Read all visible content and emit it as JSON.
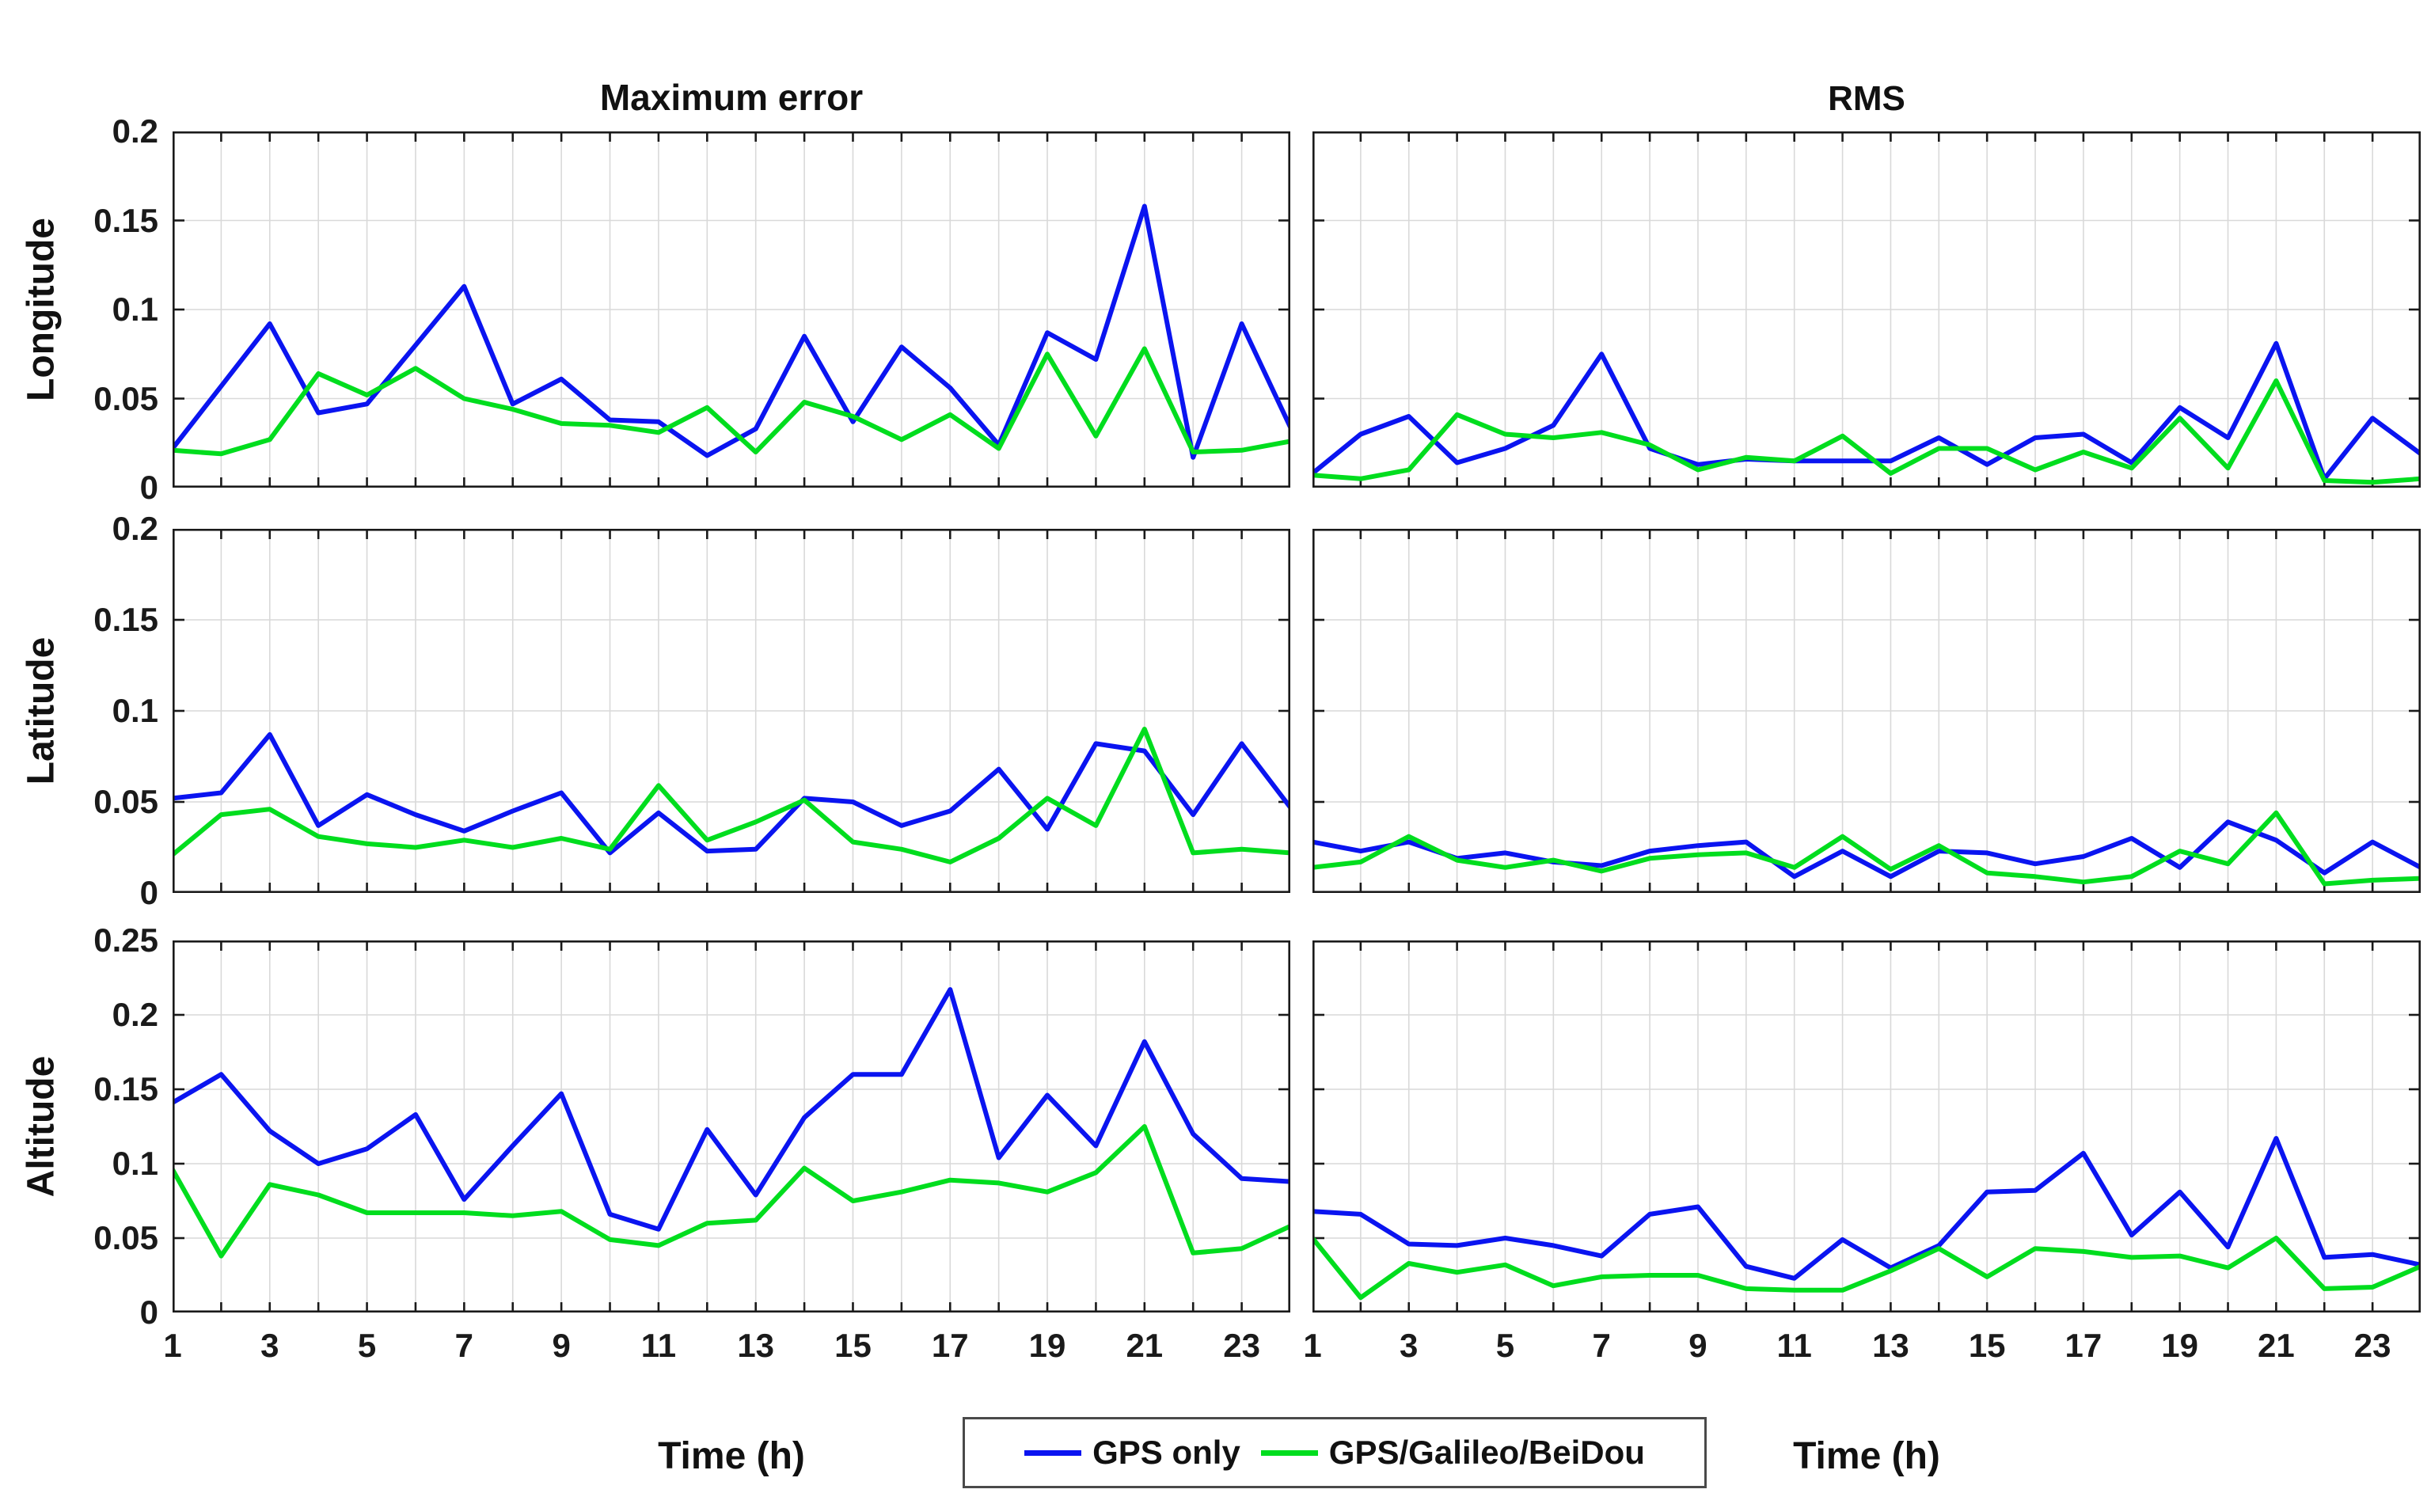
{
  "figure": {
    "background": "#ffffff",
    "left_column_title": "Maximum error",
    "right_column_title": "RMS",
    "row_labels": [
      "Longitude",
      "Latitude",
      "Altitude"
    ],
    "x_axis_label": "Time (h)",
    "x_tick_labels": [
      "1",
      "3",
      "5",
      "7",
      "9",
      "11",
      "13",
      "15",
      "17",
      "19",
      "21",
      "23"
    ]
  },
  "colors": {
    "gps_blue": "#0a14f0",
    "combo_green": "#00dd1e",
    "grid": "#d9d9d9",
    "axis": "#1a1a1a",
    "text": "#111111"
  },
  "legend": {
    "items": [
      {
        "label": "GPS only",
        "color": "#0a14f0"
      },
      {
        "label": "GPS/Galileo/BeiDou",
        "color": "#00dd1e"
      }
    ]
  },
  "chart_data": [
    {
      "key": "lon_max",
      "type": "line",
      "title": "Maximum error",
      "row": "Longitude",
      "x": [
        1,
        2,
        3,
        4,
        5,
        6,
        7,
        8,
        9,
        10,
        11,
        12,
        13,
        14,
        15,
        16,
        17,
        18,
        19,
        20,
        21,
        22,
        23,
        24
      ],
      "xlim": [
        1,
        24
      ],
      "ylim": [
        0,
        0.2
      ],
      "ytick_values": [
        0,
        0.05,
        0.1,
        0.15,
        0.2
      ],
      "ytick_labels": [
        "0",
        "0.05",
        "0.1",
        "0.15",
        "0.2"
      ],
      "grid": true,
      "series": [
        {
          "name": "GPS only",
          "color": "#0a14f0",
          "values": [
            0.022,
            0.057,
            0.092,
            0.042,
            0.047,
            0.08,
            0.113,
            0.047,
            0.061,
            0.038,
            0.037,
            0.018,
            0.033,
            0.085,
            0.037,
            0.079,
            0.056,
            0.024,
            0.087,
            0.072,
            0.158,
            0.017,
            0.092,
            0.034
          ]
        },
        {
          "name": "GPS/Galileo/BeiDou",
          "color": "#00dd1e",
          "values": [
            0.021,
            0.019,
            0.027,
            0.064,
            0.052,
            0.067,
            0.05,
            0.044,
            0.036,
            0.035,
            0.031,
            0.045,
            0.02,
            0.048,
            0.04,
            0.027,
            0.041,
            0.022,
            0.075,
            0.029,
            0.078,
            0.02,
            0.021,
            0.026
          ]
        }
      ]
    },
    {
      "key": "lon_rms",
      "type": "line",
      "title": "RMS",
      "row": "Longitude",
      "x": [
        1,
        2,
        3,
        4,
        5,
        6,
        7,
        8,
        9,
        10,
        11,
        12,
        13,
        14,
        15,
        16,
        17,
        18,
        19,
        20,
        21,
        22,
        23,
        24
      ],
      "xlim": [
        1,
        24
      ],
      "ylim": [
        0,
        0.2
      ],
      "ytick_values": [
        0,
        0.05,
        0.1,
        0.15,
        0.2
      ],
      "ytick_labels": [
        "0",
        "0.05",
        "0.1",
        "0.15",
        "0.2"
      ],
      "grid": true,
      "series": [
        {
          "name": "GPS only",
          "color": "#0a14f0",
          "values": [
            0.008,
            0.03,
            0.04,
            0.014,
            0.022,
            0.035,
            0.075,
            0.022,
            0.013,
            0.016,
            0.015,
            0.015,
            0.015,
            0.028,
            0.013,
            0.028,
            0.03,
            0.014,
            0.045,
            0.028,
            0.081,
            0.005,
            0.039,
            0.019
          ]
        },
        {
          "name": "GPS/Galileo/BeiDou",
          "color": "#00dd1e",
          "values": [
            0.007,
            0.005,
            0.01,
            0.041,
            0.03,
            0.028,
            0.031,
            0.024,
            0.01,
            0.017,
            0.015,
            0.029,
            0.008,
            0.022,
            0.022,
            0.01,
            0.02,
            0.011,
            0.039,
            0.011,
            0.06,
            0.004,
            0.003,
            0.005
          ]
        }
      ]
    },
    {
      "key": "lat_max",
      "type": "line",
      "title": "Maximum error",
      "row": "Latitude",
      "x": [
        1,
        2,
        3,
        4,
        5,
        6,
        7,
        8,
        9,
        10,
        11,
        12,
        13,
        14,
        15,
        16,
        17,
        18,
        19,
        20,
        21,
        22,
        23,
        24
      ],
      "xlim": [
        1,
        24
      ],
      "ylim": [
        0,
        0.2
      ],
      "ytick_values": [
        0,
        0.05,
        0.1,
        0.15,
        0.2
      ],
      "ytick_labels": [
        "0",
        "0.05",
        "0.1",
        "0.15",
        "0.2"
      ],
      "grid": true,
      "series": [
        {
          "name": "GPS only",
          "color": "#0a14f0",
          "values": [
            0.052,
            0.055,
            0.087,
            0.037,
            0.054,
            0.043,
            0.034,
            0.045,
            0.055,
            0.022,
            0.044,
            0.023,
            0.024,
            0.052,
            0.05,
            0.037,
            0.045,
            0.068,
            0.035,
            0.082,
            0.078,
            0.043,
            0.082,
            0.047
          ]
        },
        {
          "name": "GPS/Galileo/BeiDou",
          "color": "#00dd1e",
          "values": [
            0.021,
            0.043,
            0.046,
            0.031,
            0.027,
            0.025,
            0.029,
            0.025,
            0.03,
            0.024,
            0.059,
            0.029,
            0.039,
            0.051,
            0.028,
            0.024,
            0.017,
            0.03,
            0.052,
            0.037,
            0.09,
            0.022,
            0.024,
            0.022
          ]
        }
      ]
    },
    {
      "key": "lat_rms",
      "type": "line",
      "title": "RMS",
      "row": "Latitude",
      "x": [
        1,
        2,
        3,
        4,
        5,
        6,
        7,
        8,
        9,
        10,
        11,
        12,
        13,
        14,
        15,
        16,
        17,
        18,
        19,
        20,
        21,
        22,
        23,
        24
      ],
      "xlim": [
        1,
        24
      ],
      "ylim": [
        0,
        0.2
      ],
      "ytick_values": [
        0,
        0.05,
        0.1,
        0.15,
        0.2
      ],
      "ytick_labels": [
        "0",
        "0.05",
        "0.1",
        "0.15",
        "0.2"
      ],
      "grid": true,
      "series": [
        {
          "name": "GPS only",
          "color": "#0a14f0",
          "values": [
            0.028,
            0.023,
            0.028,
            0.019,
            0.022,
            0.017,
            0.015,
            0.023,
            0.026,
            0.028,
            0.009,
            0.023,
            0.009,
            0.023,
            0.022,
            0.016,
            0.02,
            0.03,
            0.014,
            0.039,
            0.029,
            0.011,
            0.028,
            0.014
          ]
        },
        {
          "name": "GPS/Galileo/BeiDou",
          "color": "#00dd1e",
          "values": [
            0.014,
            0.017,
            0.031,
            0.018,
            0.014,
            0.018,
            0.012,
            0.019,
            0.021,
            0.022,
            0.014,
            0.031,
            0.013,
            0.026,
            0.011,
            0.009,
            0.006,
            0.009,
            0.023,
            0.016,
            0.044,
            0.005,
            0.007,
            0.008
          ]
        }
      ]
    },
    {
      "key": "alt_max",
      "type": "line",
      "title": "Maximum error",
      "row": "Altitude",
      "x": [
        1,
        2,
        3,
        4,
        5,
        6,
        7,
        8,
        9,
        10,
        11,
        12,
        13,
        14,
        15,
        16,
        17,
        18,
        19,
        20,
        21,
        22,
        23,
        24
      ],
      "xlim": [
        1,
        24
      ],
      "ylim": [
        0,
        0.25
      ],
      "ytick_values": [
        0,
        0.05,
        0.1,
        0.15,
        0.2,
        0.25
      ],
      "ytick_labels": [
        "0",
        "0.05",
        "0.1",
        "0.15",
        "0.2",
        "0.25"
      ],
      "grid": true,
      "series": [
        {
          "name": "GPS only",
          "color": "#0a14f0",
          "values": [
            0.141,
            0.16,
            0.122,
            0.1,
            0.11,
            0.133,
            0.076,
            0.112,
            0.147,
            0.066,
            0.056,
            0.123,
            0.079,
            0.131,
            0.16,
            0.16,
            0.217,
            0.104,
            0.146,
            0.112,
            0.182,
            0.12,
            0.09,
            0.088
          ]
        },
        {
          "name": "GPS/Galileo/BeiDou",
          "color": "#00dd1e",
          "values": [
            0.096,
            0.038,
            0.086,
            0.079,
            0.067,
            0.067,
            0.067,
            0.065,
            0.068,
            0.049,
            0.045,
            0.06,
            0.062,
            0.097,
            0.075,
            0.081,
            0.089,
            0.087,
            0.081,
            0.094,
            0.125,
            0.04,
            0.043,
            0.058
          ]
        }
      ]
    },
    {
      "key": "alt_rms",
      "type": "line",
      "title": "RMS",
      "row": "Altitude",
      "x": [
        1,
        2,
        3,
        4,
        5,
        6,
        7,
        8,
        9,
        10,
        11,
        12,
        13,
        14,
        15,
        16,
        17,
        18,
        19,
        20,
        21,
        22,
        23,
        24
      ],
      "xlim": [
        1,
        24
      ],
      "ylim": [
        0,
        0.25
      ],
      "ytick_values": [
        0,
        0.05,
        0.1,
        0.15,
        0.2,
        0.25
      ],
      "ytick_labels": [
        "0",
        "0.05",
        "0.1",
        "0.15",
        "0.2",
        "0.25"
      ],
      "grid": true,
      "series": [
        {
          "name": "GPS only",
          "color": "#0a14f0",
          "values": [
            0.068,
            0.066,
            0.046,
            0.045,
            0.05,
            0.045,
            0.038,
            0.066,
            0.071,
            0.031,
            0.023,
            0.049,
            0.03,
            0.045,
            0.081,
            0.082,
            0.107,
            0.052,
            0.081,
            0.044,
            0.117,
            0.037,
            0.039,
            0.032
          ]
        },
        {
          "name": "GPS/Galileo/BeiDou",
          "color": "#00dd1e",
          "values": [
            0.05,
            0.01,
            0.033,
            0.027,
            0.032,
            0.018,
            0.024,
            0.025,
            0.025,
            0.016,
            0.015,
            0.015,
            0.028,
            0.043,
            0.024,
            0.043,
            0.041,
            0.037,
            0.038,
            0.03,
            0.05,
            0.016,
            0.017,
            0.031
          ]
        }
      ]
    }
  ]
}
